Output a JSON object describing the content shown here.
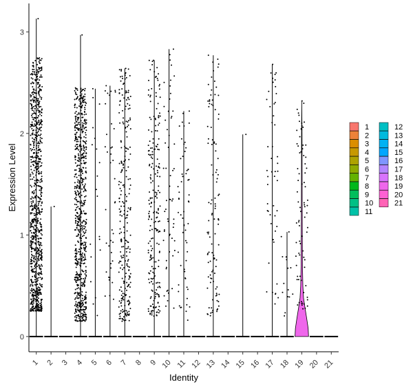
{
  "chart_data": {
    "type": "violin",
    "xlabel": "Identity",
    "ylabel": "Expression Level",
    "ylim": [
      -0.15,
      3.28
    ],
    "yticks": [
      0,
      1,
      2,
      3
    ],
    "grid": false,
    "legend_position": "right",
    "categories": [
      "1",
      "2",
      "3",
      "4",
      "5",
      "6",
      "7",
      "8",
      "9",
      "10",
      "11",
      "12",
      "13",
      "14",
      "15",
      "16",
      "17",
      "18",
      "19",
      "20",
      "21"
    ],
    "colors": [
      "#F8766D",
      "#EC8239",
      "#DB8E00",
      "#C79800",
      "#AEA200",
      "#8FAA00",
      "#64B200",
      "#00B81B",
      "#00BD5C",
      "#00C085",
      "#00C1A7",
      "#00BFC4",
      "#00BADE",
      "#00B2F3",
      "#00A6FF",
      "#7F96FF",
      "#B385FF",
      "#D874FD",
      "#EF67EB",
      "#FD61D3",
      "#FF63B6"
    ],
    "max_expression": [
      3.13,
      1.28,
      0,
      2.97,
      2.44,
      2.47,
      2.64,
      0,
      2.72,
      2.83,
      2.22,
      0,
      2.77,
      0,
      1.99,
      0,
      2.68,
      1.03,
      2.32,
      0,
      0
    ],
    "point_density": [
      900,
      1,
      0,
      750,
      20,
      40,
      260,
      0,
      230,
      60,
      60,
      0,
      110,
      0,
      1,
      0,
      50,
      15,
      80,
      0,
      0
    ],
    "point_spread": [
      [
        0.25,
        2.75
      ],
      [
        1.28,
        1.28
      ],
      [
        0,
        0
      ],
      [
        0.15,
        2.45
      ],
      [
        0.2,
        2.44
      ],
      [
        0.3,
        2.47
      ],
      [
        0.15,
        2.64
      ],
      [
        0,
        0
      ],
      [
        0.2,
        2.72
      ],
      [
        0.2,
        2.83
      ],
      [
        0.15,
        2.22
      ],
      [
        0,
        0
      ],
      [
        0.2,
        2.77
      ],
      [
        0,
        0
      ],
      [
        1.99,
        1.99
      ],
      [
        0,
        0
      ],
      [
        0.3,
        2.68
      ],
      [
        0.2,
        1.03
      ],
      [
        0.25,
        2.32
      ],
      [
        0,
        0
      ],
      [
        0,
        0
      ]
    ],
    "violin_cluster": "19",
    "violin_profile": [
      [
        0,
        0.5
      ],
      [
        0.08,
        0.47
      ],
      [
        0.18,
        0.36
      ],
      [
        0.28,
        0.24
      ],
      [
        0.38,
        0.13
      ],
      [
        0.5,
        0.08
      ],
      [
        0.7,
        0.05
      ],
      [
        1.0,
        0.04
      ],
      [
        1.3,
        0.03
      ],
      [
        1.6,
        0.025
      ],
      [
        2.0,
        0.018
      ],
      [
        2.32,
        0.0
      ]
    ],
    "legend_columns": [
      [
        "1",
        "2",
        "3",
        "4",
        "5",
        "6",
        "7",
        "8",
        "9",
        "10",
        "11"
      ],
      [
        "12",
        "13",
        "14",
        "15",
        "16",
        "17",
        "18",
        "19",
        "20",
        "21"
      ]
    ]
  }
}
